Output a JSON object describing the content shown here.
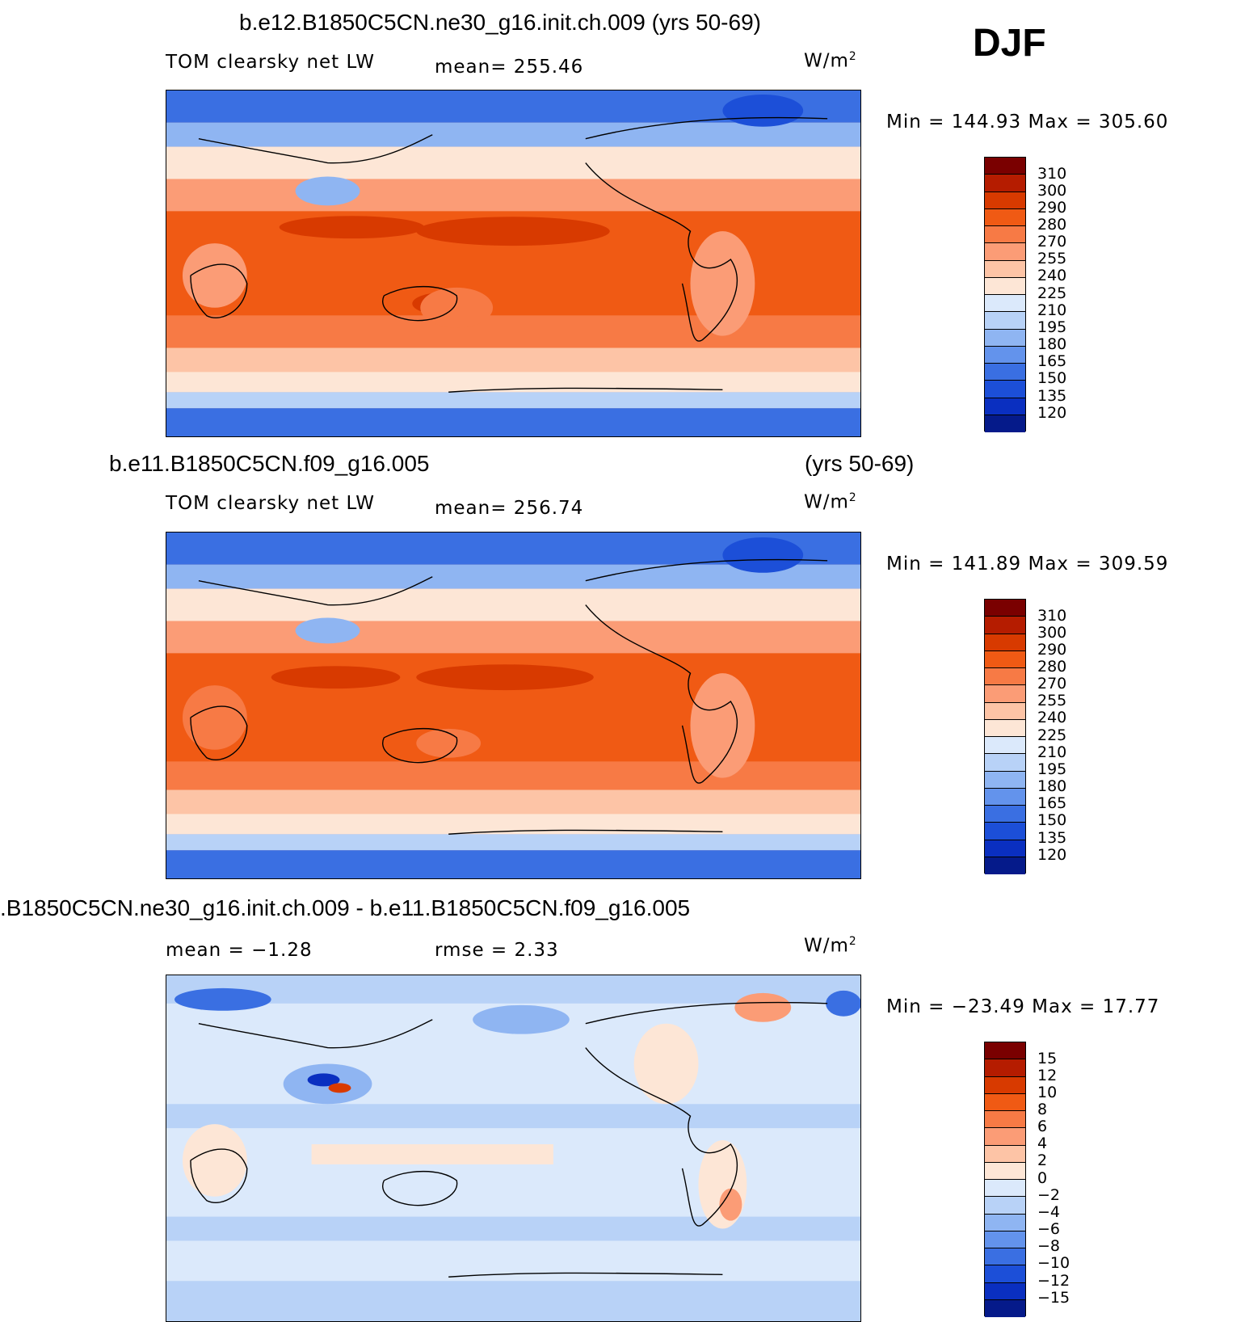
{
  "season": "DJF",
  "panels": [
    {
      "title_left": "b.e12.B1850C5CN.ne30_g16.init.ch.009 (yrs 50-69)",
      "title_right": "",
      "variable": "TOM clearsky net LW",
      "stat": "mean= 255.46",
      "units": "W/m",
      "units_sup": "2",
      "minmax": "Min  =  144.93  Max  =  305.60",
      "colorbar": {
        "labels": [
          "310",
          "300",
          "290",
          "280",
          "270",
          "255",
          "240",
          "225",
          "210",
          "195",
          "180",
          "165",
          "150",
          "135",
          "120"
        ],
        "colors": [
          "#7a0000",
          "#b51c00",
          "#d83a00",
          "#f05a14",
          "#f77a45",
          "#fb9c76",
          "#fdc4a6",
          "#fde6d6",
          "#dbe9fb",
          "#b8d2f7",
          "#8fb5f2",
          "#6393ec",
          "#3a6fe2",
          "#1c4fd8",
          "#0a2fc0",
          "#051a8a"
        ]
      },
      "data_fill": "modeled climatology (field shown as colour)"
    },
    {
      "title_left": "b.e11.B1850C5CN.f09_g16.005",
      "title_right": "(yrs 50-69)",
      "variable": "TOM clearsky net LW",
      "stat": "mean= 256.74",
      "units": "W/m",
      "units_sup": "2",
      "minmax": "Min  =  141.89  Max  =  309.59",
      "colorbar": {
        "labels": [
          "310",
          "300",
          "290",
          "280",
          "270",
          "255",
          "240",
          "225",
          "210",
          "195",
          "180",
          "165",
          "150",
          "135",
          "120"
        ],
        "colors": [
          "#7a0000",
          "#b51c00",
          "#d83a00",
          "#f05a14",
          "#f77a45",
          "#fb9c76",
          "#fdc4a6",
          "#fde6d6",
          "#dbe9fb",
          "#b8d2f7",
          "#8fb5f2",
          "#6393ec",
          "#3a6fe2",
          "#1c4fd8",
          "#0a2fc0",
          "#051a8a"
        ]
      }
    },
    {
      "title_left": ".B1850C5CN.ne30_g16.init.ch.009 - b.e11.B1850C5CN.f09_g16.005",
      "title_right": "",
      "variable": "mean =   −1.28",
      "stat": "rmse =     2.33",
      "units": "W/m",
      "units_sup": "2",
      "minmax": "Min  =  −23.49  Max  =    17.77",
      "colorbar": {
        "labels": [
          "15",
          "12",
          "10",
          "8",
          "6",
          "4",
          "2",
          "0",
          "−2",
          "−4",
          "−6",
          "−8",
          "−10",
          "−12",
          "−15"
        ],
        "colors": [
          "#7a0000",
          "#b51c00",
          "#d83a00",
          "#f05a14",
          "#f77a45",
          "#fb9c76",
          "#fdc4a6",
          "#fde6d6",
          "#dbe9fb",
          "#b8d2f7",
          "#8fb5f2",
          "#6393ec",
          "#3a6fe2",
          "#1c4fd8",
          "#0a2fc0",
          "#051a8a"
        ]
      }
    }
  ]
}
